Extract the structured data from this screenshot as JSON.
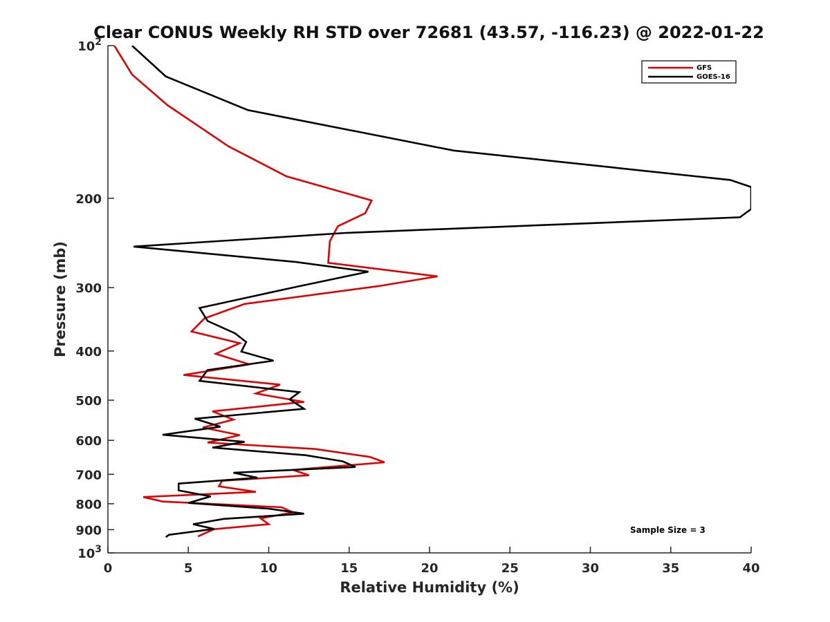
{
  "chart_data": {
    "type": "line",
    "title": "Clear CONUS Weekly RH STD over 72681 (43.57, -116.23) @ 2022-01-22",
    "xlabel": "Relative Humidity (%)",
    "ylabel": "Pressure (mb)",
    "xlim": [
      0,
      40
    ],
    "ylim": [
      100,
      1000
    ],
    "y_scale": "log",
    "y_reversed": true,
    "grid": false,
    "legend_position": "top-right",
    "x_ticks": [
      0,
      5,
      10,
      15,
      20,
      25,
      30,
      35,
      40
    ],
    "x_tick_labels": [
      "0",
      "5",
      "10",
      "15",
      "20",
      "25",
      "30",
      "35",
      "40"
    ],
    "y_ticks": [
      100,
      200,
      300,
      400,
      500,
      600,
      700,
      800,
      900,
      1000
    ],
    "y_tick_labels": [
      "10^2",
      "200",
      "300",
      "400",
      "500",
      "600",
      "700",
      "800",
      "900",
      "10^3"
    ],
    "annotation": "Sample Size = 3",
    "series": [
      {
        "name": "GFS",
        "color": "#e00000",
        "x": [
          0.4,
          1.5,
          3.7,
          7.5,
          11.1,
          16.4,
          16.0,
          14.3,
          13.8,
          13.7,
          20.5,
          16.8,
          8.5,
          6.0,
          5.2,
          8.2,
          6.7,
          8.8,
          4.7,
          10.7,
          9.2,
          12.2,
          6.5,
          7.8,
          5.9,
          8.2,
          6.2,
          12.9,
          16.3,
          17.2,
          11.5,
          12.5,
          7.1,
          6.9,
          9.2,
          2.2,
          3.4,
          10.8,
          11.5,
          9.5,
          10.0,
          6.6,
          5.6
        ],
        "y": [
          100,
          114,
          131,
          158,
          181,
          202,
          214,
          227,
          243,
          268,
          285,
          298,
          323,
          345,
          366,
          386,
          405,
          425,
          446,
          466,
          485,
          504,
          526,
          546,
          566,
          586,
          606,
          624,
          647,
          663,
          686,
          703,
          721,
          739,
          758,
          776,
          792,
          813,
          832,
          855,
          878,
          898,
          928
        ]
      },
      {
        "name": "GOES-16",
        "color": "#000000",
        "x": [
          1.5,
          3.6,
          8.7,
          21.5,
          38.7,
          40.0,
          40.0,
          39.3,
          14.8,
          1.6,
          11.7,
          16.2,
          11.7,
          5.7,
          6.2,
          7.9,
          8.6,
          8.3,
          10.3,
          6.2,
          5.7,
          11.9,
          11.3,
          12.2,
          5.4,
          7.0,
          3.4,
          8.5,
          6.5,
          12.3,
          14.6,
          15.4,
          7.8,
          9.3,
          4.4,
          4.4,
          6.4,
          5.0,
          10.0,
          12.2,
          7.2,
          5.3,
          6.6,
          3.8,
          3.6
        ],
        "y": [
          100,
          115,
          134,
          161,
          184,
          190,
          210,
          218,
          234,
          249,
          267,
          279,
          299,
          329,
          349,
          369,
          384,
          401,
          418,
          436,
          458,
          482,
          498,
          520,
          544,
          564,
          585,
          604,
          620,
          642,
          660,
          677,
          695,
          711,
          730,
          753,
          774,
          797,
          818,
          837,
          857,
          878,
          897,
          921,
          931
        ]
      }
    ]
  }
}
